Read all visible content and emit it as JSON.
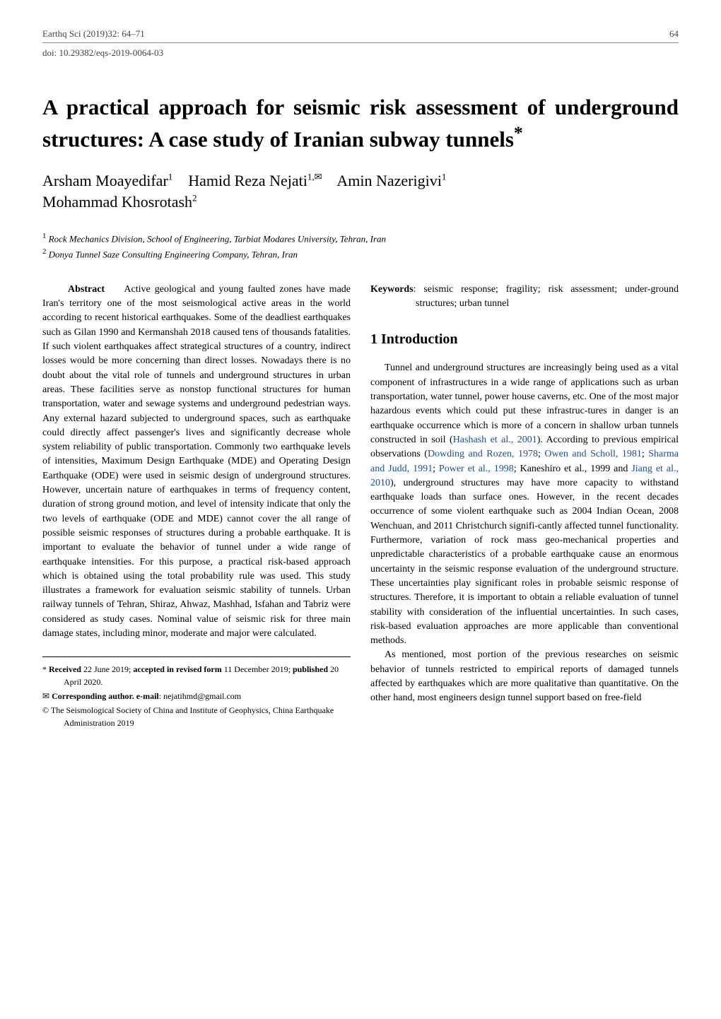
{
  "header": {
    "journal_ref": "Earthq Sci (2019)32: 64–71",
    "page_number": "64",
    "doi": "doi: 10.29382/eqs-2019-0064-03"
  },
  "title": "A practical approach for seismic risk assessment of underground structures: A case study of Iranian subway tunnels",
  "title_footnote_mark": "*",
  "authors": {
    "a1": "Arsham Moayedifar",
    "a1_sup": "1",
    "a2": "Hamid Reza Nejati",
    "a2_sup": "1,✉",
    "a3": "Amin Nazerigivi",
    "a3_sup": "1",
    "a4": "Mohammad Khosrotash",
    "a4_sup": "2"
  },
  "affiliations": {
    "aff1_num": "1",
    "aff1": "Rock Mechanics Division, School of Engineering, Tarbiat Modares University, Tehran, Iran",
    "aff2_num": "2",
    "aff2": "Donya Tunnel Saze Consulting Engineering Company, Tehran, Iran"
  },
  "abstract": {
    "label": "Abstract",
    "text": "Active geological and young faulted zones have made Iran's territory one of the most seismological active areas in the world according to recent historical earthquakes. Some of the deadliest earthquakes such as Gilan 1990 and Kermanshah 2018 caused tens of thousands fatalities. If such violent earthquakes affect strategical structures of a country, indirect losses would be more concerning than direct losses. Nowadays there is no doubt about the vital role of tunnels and underground structures in urban areas. These facilities serve as nonstop functional structures for human transportation, water and sewage systems and underground pedestrian ways. Any external hazard subjected to underground spaces, such as earthquake could directly affect passenger's lives and significantly decrease whole system reliability of public transportation. Commonly two earthquake levels of intensities, Maximum Design Earthquake (MDE) and Operating Design Earthquake (ODE) were used in seismic design of underground structures. However, uncertain nature of earthquakes in terms of frequency content, duration of strong ground motion, and level of intensity indicate that only the two levels of earthquake (ODE and MDE) cannot cover the all range of possible seismic responses of structures during a probable earthquake. It is important to evaluate the behavior of tunnel under a wide range of earthquake intensities. For this purpose, a practical risk-based approach which is obtained using the total probability rule was used. This study illustrates a framework for evaluation seismic stability of tunnels. Urban railway tunnels of Tehran, Shiraz, Ahwaz, Mashhad, Isfahan and Tabriz were considered as study cases. Nominal value of seismic risk for three main damage states, including minor, moderate and major were calculated."
  },
  "keywords": {
    "label": "Keywords",
    "text": ": seismic response; fragility; risk assessment;  under-ground structures; urban tunnel"
  },
  "section1": {
    "heading": "1  Introduction",
    "p1_a": "Tunnel and underground structures are increasingly being used as a vital component of infrastructures in a wide range of applications such as urban transportation, water tunnel, power house caverns, etc. One of the most major hazardous events which could put these infrastruc-tures in danger is an earthquake occurrence which is more of a concern in shallow urban tunnels constructed in soil (",
    "c1": "Hashash et al., 2001",
    "p1_b": "). According to previous empirical observations (",
    "c2": "Dowding and Rozen, 1978",
    "p1_c": "; ",
    "c3": "Owen and Scholl, 1981",
    "p1_d": "; ",
    "c4": "Sharma and Judd, 1991",
    "p1_e": "; ",
    "c5": "Power et al., 1998",
    "p1_f": "; Kaneshiro et al., 1999 and ",
    "c6": "Jiang et al., 2010",
    "p1_g": "), underground structures may have more capacity to withstand earthquake loads than surface ones. However, in the recent decades occurrence of some violent earthquake such as 2004 Indian Ocean, 2008 Wenchuan, and 2011 Christchurch signifi-cantly affected tunnel functionality. Furthermore, variation of rock mass geo-mechanical properties and unpredictable characteristics of a probable earthquake cause an enormous uncertainty in the seismic response evaluation of the underground structure. These uncertainties play significant roles in probable seismic response of structures. Therefore, it is important to obtain a reliable evaluation of tunnel stability with consideration of the influential uncertainties. In such cases, risk-based evaluation approaches are more applicable than conventional methods.",
    "p2": "As mentioned, most portion of the previous researches on seismic behavior of tunnels restricted to empirical reports of damaged tunnels affected by earthquakes which are more qualitative than quantitative. On the other hand, most engineers design tunnel support based on free-field"
  },
  "footnotes": {
    "f1_a": "* ",
    "f1_b": "Received",
    "f1_c": " 22 June 2019; ",
    "f1_d": "accepted in revised form",
    "f1_e": " 11 December 2019; ",
    "f1_f": "published",
    "f1_g": " 20 April 2020.",
    "f2_a": "✉ ",
    "f2_b": "Corresponding author. e-mail",
    "f2_c": ": nejatihmd@gmail.com",
    "f3": "© The Seismological Society of China and Institute of Geophysics, China Earthquake Administration 2019"
  },
  "colors": {
    "text": "#000000",
    "muted": "#444444",
    "citation": "#1a4fa0",
    "rule": "#888888",
    "background": "#ffffff"
  },
  "typography": {
    "body_font": "Times New Roman",
    "title_pt": 31,
    "authors_pt": 22,
    "section_heading_pt": 20,
    "body_pt": 14,
    "small_pt": 13,
    "footnote_pt": 12
  }
}
